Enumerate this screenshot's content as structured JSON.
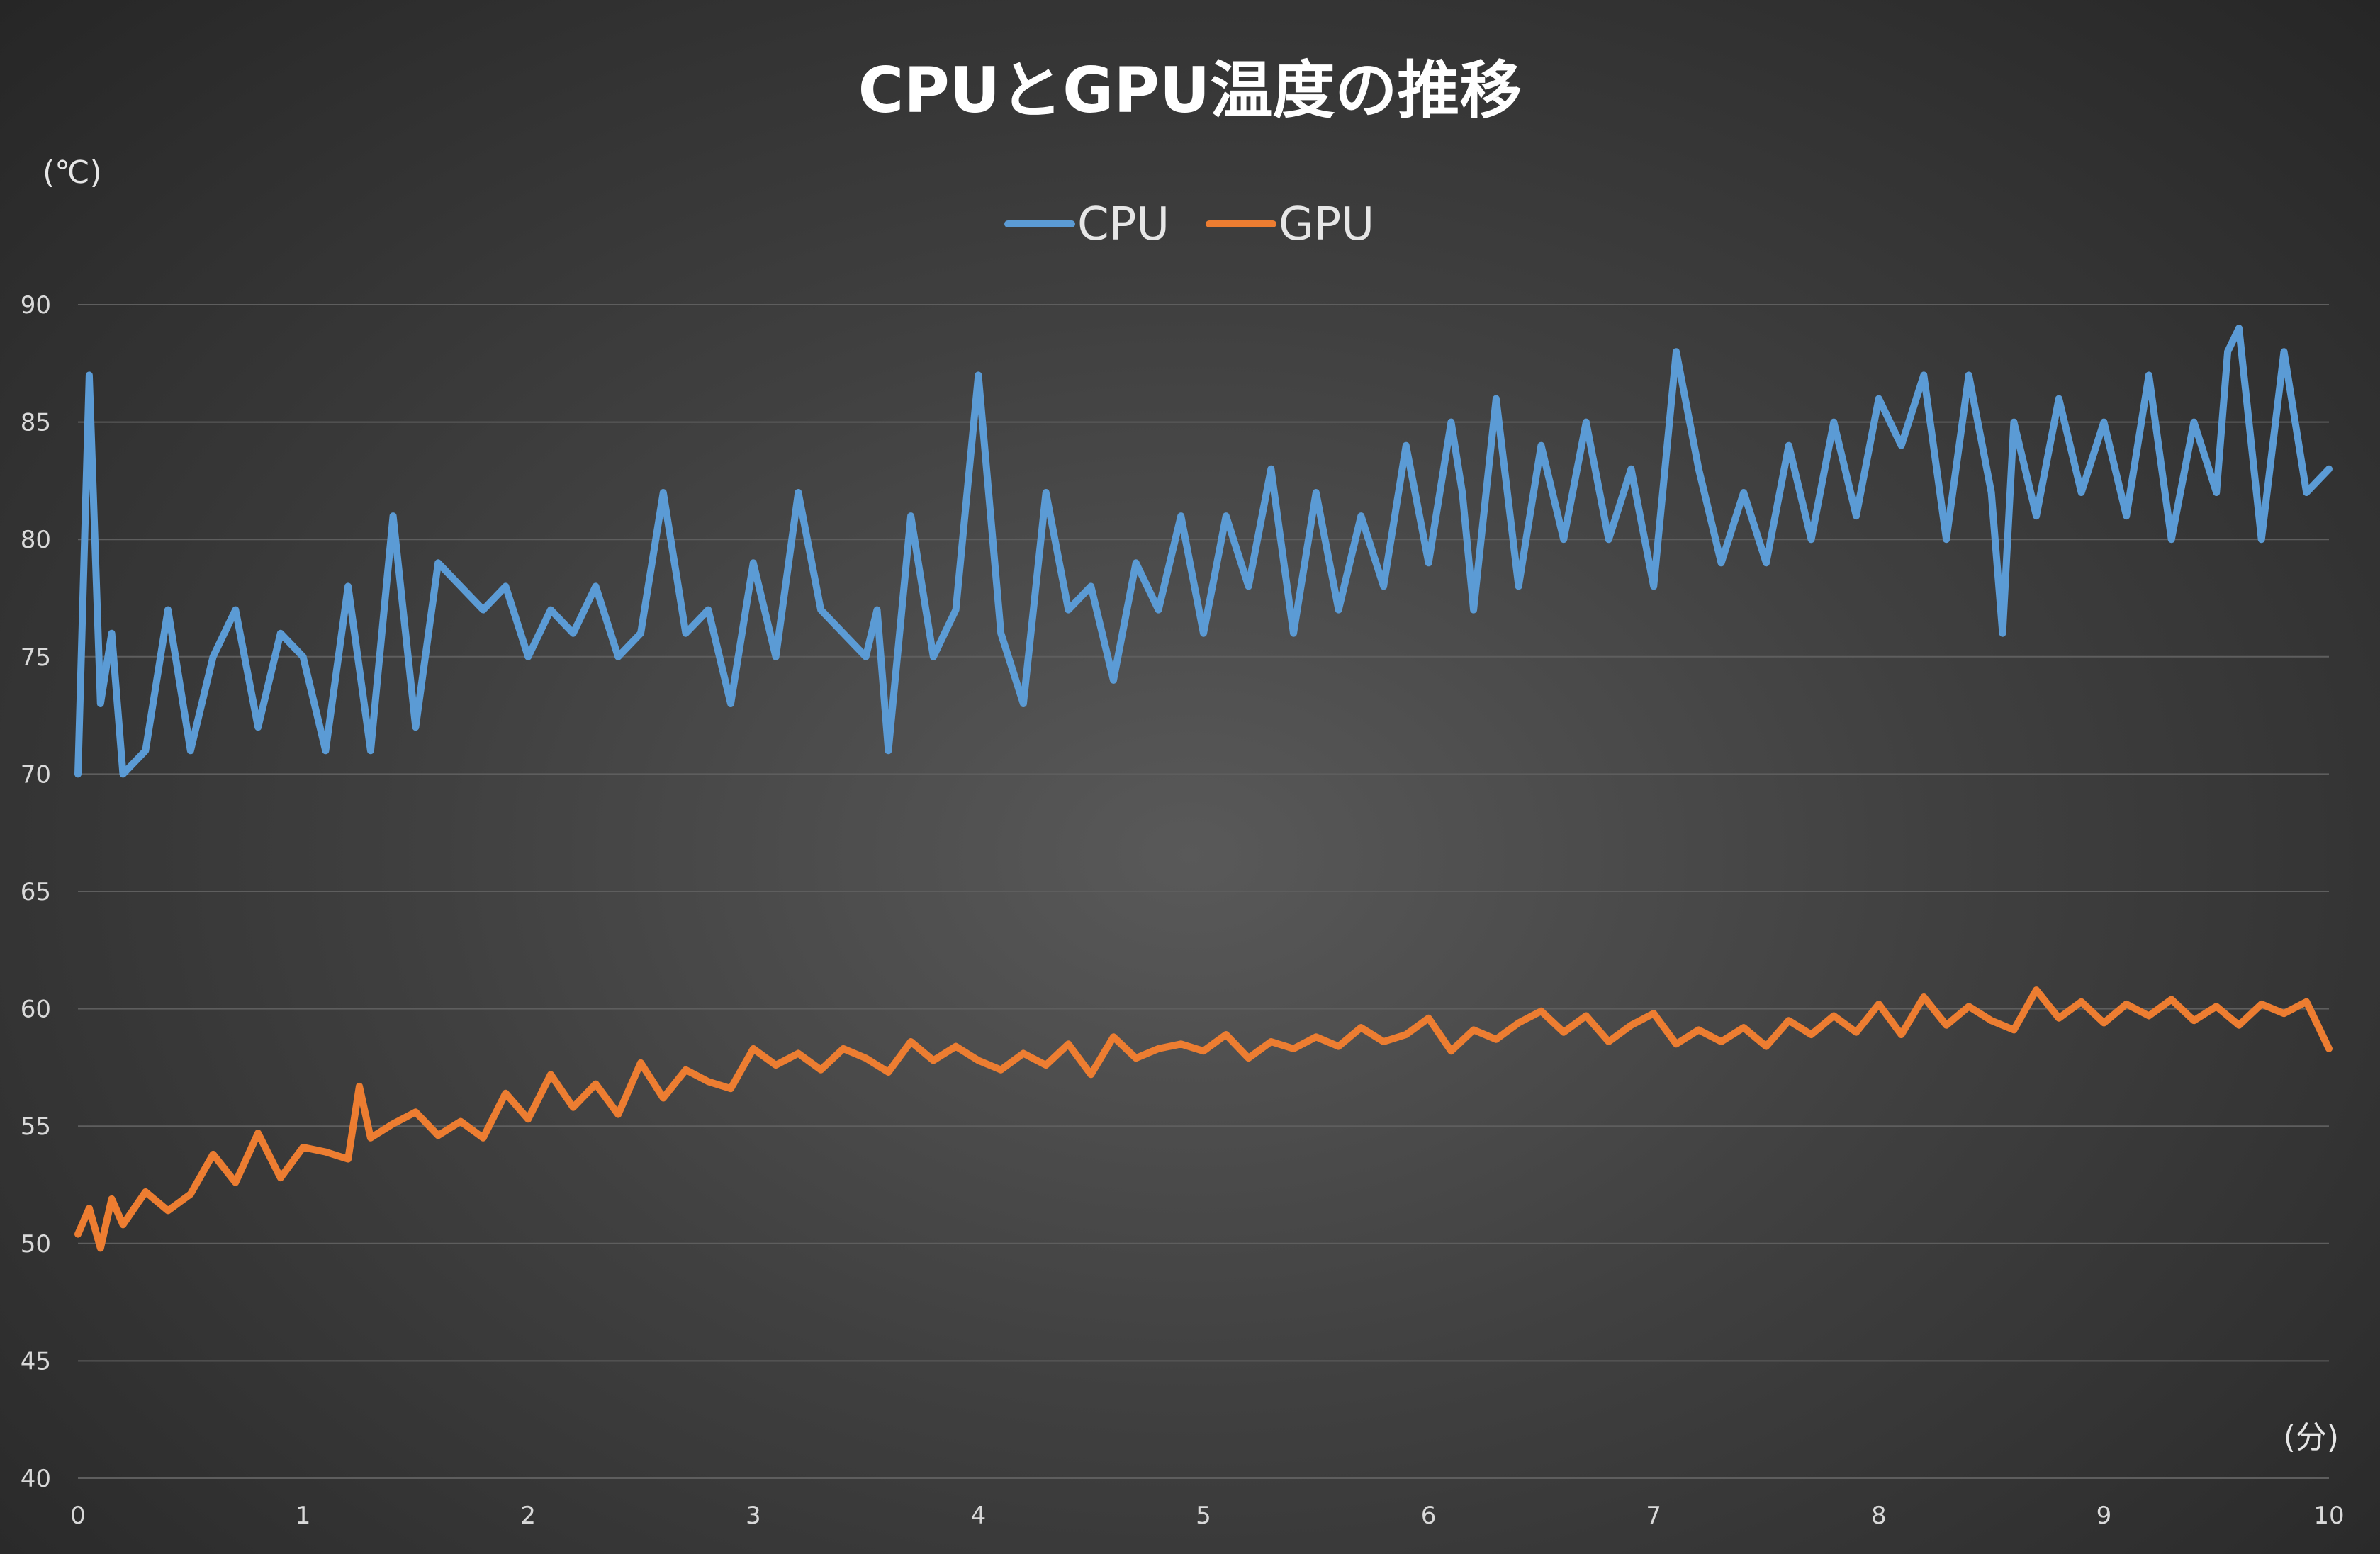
{
  "chart_data": {
    "type": "line",
    "title": "CPUとGPU温度の推移",
    "ylabel": "(℃)",
    "xlabel": "(分)",
    "ylim": [
      40,
      90
    ],
    "xlim": [
      0,
      10
    ],
    "yticks": [
      40,
      45,
      50,
      55,
      60,
      65,
      70,
      75,
      80,
      85,
      90
    ],
    "xticks": [
      0,
      1,
      2,
      3,
      4,
      5,
      6,
      7,
      8,
      9,
      10
    ],
    "grid": true,
    "legend_position": "top-center",
    "series": [
      {
        "name": "CPU",
        "color": "#5b9bd5",
        "x": [
          0,
          0.05,
          0.1,
          0.15,
          0.2,
          0.3,
          0.4,
          0.5,
          0.6,
          0.7,
          0.8,
          0.9,
          1.0,
          1.1,
          1.2,
          1.3,
          1.4,
          1.5,
          1.6,
          1.7,
          1.8,
          1.9,
          2.0,
          2.1,
          2.2,
          2.3,
          2.4,
          2.5,
          2.6,
          2.7,
          2.8,
          2.9,
          3.0,
          3.1,
          3.2,
          3.3,
          3.4,
          3.5,
          3.55,
          3.6,
          3.7,
          3.8,
          3.9,
          4.0,
          4.1,
          4.2,
          4.3,
          4.4,
          4.5,
          4.6,
          4.7,
          4.8,
          4.9,
          5.0,
          5.1,
          5.2,
          5.3,
          5.4,
          5.5,
          5.6,
          5.7,
          5.8,
          5.9,
          6.0,
          6.1,
          6.15,
          6.2,
          6.3,
          6.4,
          6.5,
          6.6,
          6.7,
          6.8,
          6.9,
          7.0,
          7.1,
          7.2,
          7.3,
          7.4,
          7.5,
          7.6,
          7.7,
          7.8,
          7.9,
          8.0,
          8.1,
          8.2,
          8.3,
          8.4,
          8.5,
          8.55,
          8.6,
          8.7,
          8.8,
          8.9,
          9.0,
          9.1,
          9.2,
          9.3,
          9.4,
          9.5,
          9.55,
          9.6,
          9.7,
          9.8,
          9.9,
          10.0
        ],
        "values": [
          70,
          87,
          73,
          76,
          70,
          71,
          77,
          71,
          75,
          77,
          72,
          76,
          75,
          71,
          78,
          71,
          81,
          72,
          79,
          78,
          77,
          78,
          75,
          77,
          76,
          78,
          75,
          76,
          82,
          76,
          77,
          73,
          79,
          75,
          82,
          77,
          76,
          75,
          77,
          71,
          81,
          75,
          77,
          87,
          76,
          73,
          82,
          77,
          78,
          74,
          79,
          77,
          81,
          76,
          81,
          78,
          83,
          76,
          82,
          77,
          81,
          78,
          84,
          79,
          85,
          82,
          77,
          86,
          78,
          84,
          80,
          85,
          80,
          83,
          78,
          88,
          83,
          79,
          82,
          79,
          84,
          80,
          85,
          81,
          86,
          84,
          87,
          80,
          87,
          82,
          76,
          85,
          81,
          86,
          82,
          85,
          81,
          87,
          80,
          85,
          82,
          88,
          89,
          80,
          88,
          82,
          83
        ]
      },
      {
        "name": "GPU",
        "color": "#ed7d31",
        "x": [
          0,
          0.05,
          0.1,
          0.15,
          0.2,
          0.3,
          0.4,
          0.5,
          0.6,
          0.7,
          0.8,
          0.9,
          1.0,
          1.1,
          1.2,
          1.25,
          1.3,
          1.4,
          1.5,
          1.6,
          1.7,
          1.8,
          1.9,
          2.0,
          2.1,
          2.2,
          2.3,
          2.4,
          2.5,
          2.6,
          2.7,
          2.8,
          2.9,
          3.0,
          3.1,
          3.2,
          3.3,
          3.4,
          3.5,
          3.6,
          3.7,
          3.8,
          3.9,
          4.0,
          4.1,
          4.2,
          4.3,
          4.4,
          4.5,
          4.6,
          4.7,
          4.8,
          4.9,
          5.0,
          5.1,
          5.2,
          5.3,
          5.4,
          5.5,
          5.6,
          5.7,
          5.8,
          5.9,
          6.0,
          6.1,
          6.2,
          6.3,
          6.4,
          6.5,
          6.6,
          6.7,
          6.8,
          6.9,
          7.0,
          7.1,
          7.2,
          7.3,
          7.4,
          7.5,
          7.6,
          7.7,
          7.8,
          7.9,
          8.0,
          8.1,
          8.2,
          8.3,
          8.4,
          8.5,
          8.6,
          8.7,
          8.8,
          8.9,
          9.0,
          9.1,
          9.2,
          9.3,
          9.4,
          9.5,
          9.6,
          9.7,
          9.8,
          9.9,
          10.0
        ],
        "values": [
          50.4,
          51.5,
          49.8,
          51.9,
          50.8,
          52.2,
          51.4,
          52.1,
          53.8,
          52.6,
          54.7,
          52.8,
          54.1,
          53.9,
          53.6,
          56.7,
          54.5,
          55.1,
          55.6,
          54.6,
          55.2,
          54.5,
          56.4,
          55.3,
          57.2,
          55.8,
          56.8,
          55.5,
          57.7,
          56.2,
          57.4,
          56.9,
          56.6,
          58.3,
          57.6,
          58.1,
          57.4,
          58.3,
          57.9,
          57.3,
          58.6,
          57.8,
          58.4,
          57.8,
          57.4,
          58.1,
          57.6,
          58.5,
          57.2,
          58.8,
          57.9,
          58.3,
          58.5,
          58.2,
          58.9,
          57.9,
          58.6,
          58.3,
          58.8,
          58.4,
          59.2,
          58.6,
          58.9,
          59.6,
          58.2,
          59.1,
          58.7,
          59.4,
          59.9,
          59.0,
          59.7,
          58.6,
          59.3,
          59.8,
          58.5,
          59.1,
          58.6,
          59.2,
          58.4,
          59.5,
          58.9,
          59.7,
          59.0,
          60.2,
          58.9,
          60.5,
          59.3,
          60.1,
          59.5,
          59.1,
          60.8,
          59.6,
          60.3,
          59.4,
          60.2,
          59.7,
          60.4,
          59.5,
          60.1,
          59.3,
          60.2,
          59.8,
          60.3,
          58.3
        ]
      }
    ]
  }
}
